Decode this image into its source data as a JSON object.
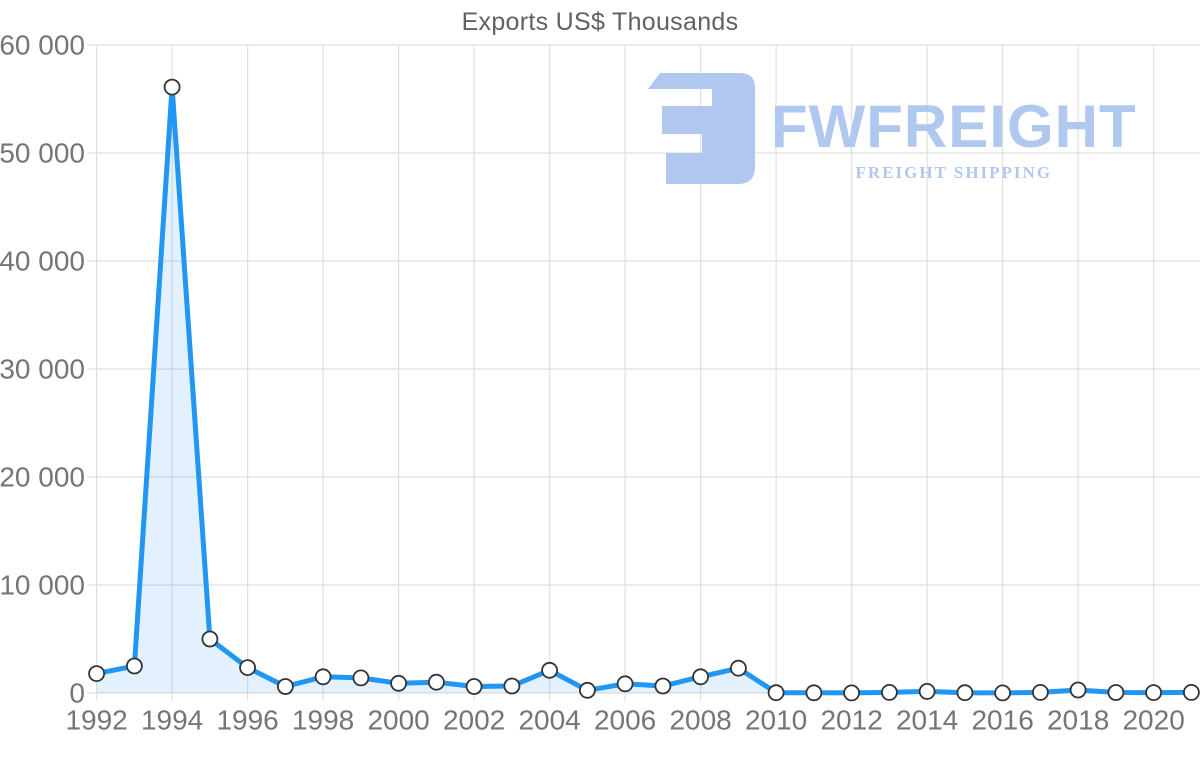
{
  "chart_data": {
    "type": "area",
    "title": "Exports US$ Thousands",
    "xlabel": "",
    "ylabel": "",
    "x": [
      1992,
      1993,
      1994,
      1995,
      1996,
      1997,
      1998,
      1999,
      2000,
      2001,
      2002,
      2003,
      2004,
      2005,
      2006,
      2007,
      2008,
      2009,
      2010,
      2011,
      2012,
      2013,
      2014,
      2015,
      2016,
      2017,
      2018,
      2019,
      2020,
      2021
    ],
    "series": [
      {
        "name": "Exports US$ Thousands",
        "values": [
          1800,
          2500,
          56100,
          5000,
          2350,
          600,
          1500,
          1400,
          900,
          1000,
          600,
          650,
          2100,
          250,
          850,
          650,
          1500,
          2300,
          30,
          20,
          10,
          60,
          150,
          30,
          10,
          60,
          280,
          50,
          40,
          60
        ]
      }
    ],
    "ylim": [
      0,
      60000
    ],
    "y_ticks": [
      0,
      10000,
      20000,
      30000,
      40000,
      50000,
      60000
    ],
    "y_tick_labels": [
      "0",
      "10 000",
      "20 000",
      "30 000",
      "40 000",
      "50 000",
      "60 000"
    ],
    "x_ticks": [
      1992,
      1994,
      1996,
      1998,
      2000,
      2002,
      2004,
      2006,
      2008,
      2010,
      2012,
      2014,
      2016,
      2018,
      2020
    ],
    "x_tick_labels": [
      "1992",
      "1994",
      "1996",
      "1998",
      "2000",
      "2002",
      "2004",
      "2006",
      "2008",
      "2010",
      "2012",
      "2014",
      "2016",
      "2018",
      "2020"
    ],
    "grid": "on",
    "legend": "none",
    "markers": "circle"
  },
  "watermark": {
    "name": "FWFREIGHT",
    "tagline": "FREIGHT SHIPPING",
    "logo": "fwfreight-logo"
  },
  "colors": {
    "line": "#2196f3",
    "area_fill": "#2196f3",
    "area_opacity": "0.13",
    "marker_fill": "#ffffff",
    "marker_stroke": "#333333",
    "grid": "#e0e0e0",
    "tick_text": "#757575",
    "title_text": "#616161",
    "watermark": "#b0c7f0",
    "background": "#ffffff"
  }
}
